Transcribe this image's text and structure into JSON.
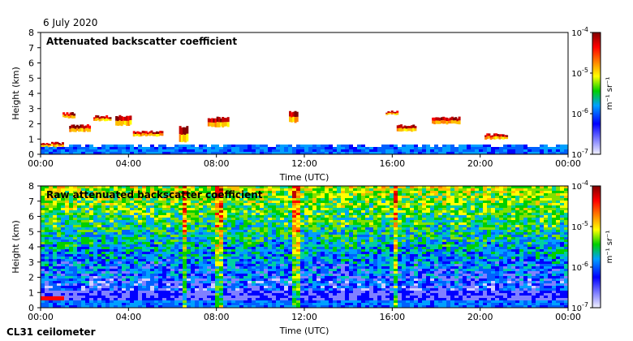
{
  "date": "6 July 2020",
  "instrument": "CL31 ceilometer",
  "chart_data": [
    {
      "type": "heatmap",
      "title": "Attenuated backscatter coefficient",
      "xlabel": "Time (UTC)",
      "ylabel": "Height (km)",
      "x_ticks": [
        "00:00",
        "04:00",
        "08:00",
        "12:00",
        "16:00",
        "20:00",
        "00:00"
      ],
      "y_ticks": [
        "0",
        "1",
        "2",
        "3",
        "4",
        "5",
        "6",
        "7",
        "8"
      ],
      "ylim": [
        0,
        8
      ],
      "xlim_hours": [
        0,
        24
      ],
      "colorbar": {
        "label": "m⁻¹ sr⁻¹",
        "ticks": [
          {
            "base": "10",
            "exp": "-4",
            "value": 0.0001
          },
          {
            "base": "10",
            "exp": "-5",
            "value": 1e-05
          },
          {
            "base": "10",
            "exp": "-6",
            "value": 1e-06
          },
          {
            "base": "10",
            "exp": "-7",
            "value": 1e-07
          }
        ]
      },
      "features": {
        "boundary_layer_top_km": 0.6,
        "cloud_layers": [
          {
            "start_h": 0.0,
            "end_h": 1.0,
            "base_km": 0.5,
            "top_km": 0.75
          },
          {
            "start_h": 1.0,
            "end_h": 1.5,
            "base_km": 2.4,
            "top_km": 2.7
          },
          {
            "start_h": 1.3,
            "end_h": 2.2,
            "base_km": 1.5,
            "top_km": 1.9
          },
          {
            "start_h": 2.4,
            "end_h": 3.2,
            "base_km": 2.2,
            "top_km": 2.5
          },
          {
            "start_h": 3.4,
            "end_h": 4.1,
            "base_km": 1.9,
            "top_km": 2.5
          },
          {
            "start_h": 4.2,
            "end_h": 5.5,
            "base_km": 1.2,
            "top_km": 1.5
          },
          {
            "start_h": 6.3,
            "end_h": 6.7,
            "base_km": 0.8,
            "top_km": 1.8
          },
          {
            "start_h": 7.6,
            "end_h": 8.5,
            "base_km": 1.8,
            "top_km": 2.4
          },
          {
            "start_h": 11.3,
            "end_h": 11.7,
            "base_km": 2.1,
            "top_km": 2.8
          },
          {
            "start_h": 15.7,
            "end_h": 16.2,
            "base_km": 2.6,
            "top_km": 2.8
          },
          {
            "start_h": 16.2,
            "end_h": 17.0,
            "base_km": 1.5,
            "top_km": 1.9
          },
          {
            "start_h": 17.8,
            "end_h": 19.0,
            "base_km": 2.0,
            "top_km": 2.4
          },
          {
            "start_h": 20.2,
            "end_h": 21.2,
            "base_km": 1.0,
            "top_km": 1.3
          }
        ]
      }
    },
    {
      "type": "heatmap",
      "title": "Raw attenuated backscatter coefficient",
      "xlabel": "Time (UTC)",
      "ylabel": "Height (km)",
      "x_ticks": [
        "00:00",
        "04:00",
        "08:00",
        "12:00",
        "16:00",
        "20:00",
        "00:00"
      ],
      "y_ticks": [
        "0",
        "1",
        "2",
        "3",
        "4",
        "5",
        "6",
        "7",
        "8"
      ],
      "ylim": [
        0,
        8
      ],
      "xlim_hours": [
        0,
        24
      ],
      "colorbar": {
        "label": "m⁻¹ sr⁻¹",
        "ticks": [
          {
            "base": "10",
            "exp": "-4",
            "value": 0.0001
          },
          {
            "base": "10",
            "exp": "-5",
            "value": 1e-05
          },
          {
            "base": "10",
            "exp": "-6",
            "value": 1e-06
          },
          {
            "base": "10",
            "exp": "-7",
            "value": 1e-07
          }
        ]
      },
      "features": {
        "noise_level_description": "noisy background increasing with height",
        "precip_columns": [
          {
            "start_h": 6.4,
            "end_h": 6.6
          },
          {
            "start_h": 7.8,
            "end_h": 8.2
          },
          {
            "start_h": 10.9,
            "end_h": 11.0
          },
          {
            "start_h": 11.3,
            "end_h": 11.7
          },
          {
            "start_h": 15.9,
            "end_h": 16.1
          }
        ]
      }
    }
  ]
}
